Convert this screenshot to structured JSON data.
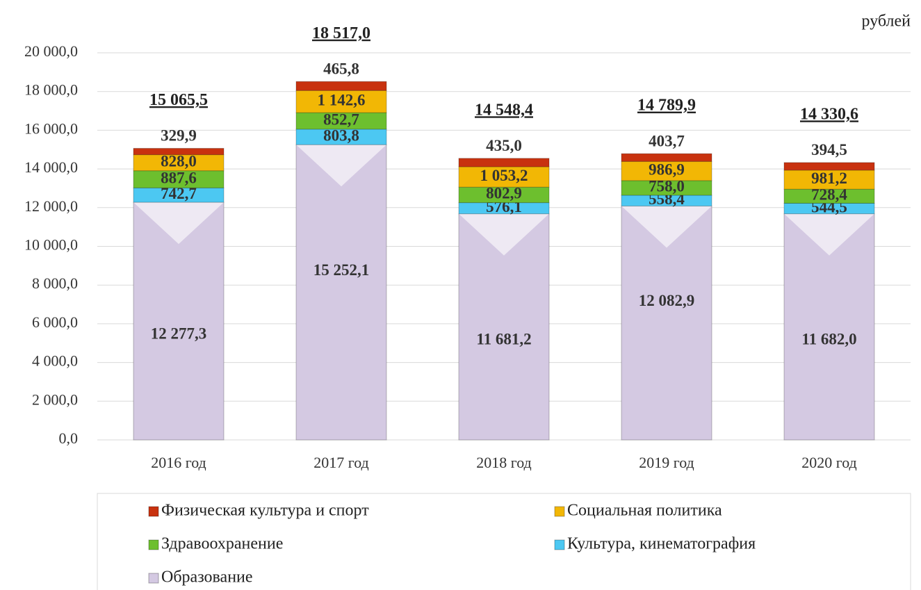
{
  "chart_data": {
    "type": "stacked_bar",
    "unit_label": "рублей",
    "categories": [
      "2016 год",
      "2017 год",
      "2018 год",
      "2019 год",
      "2020 год"
    ],
    "series": [
      {
        "name": "Образование",
        "color": "#d4c9e2",
        "values": [
          12277.3,
          15252.1,
          11681.2,
          12082.9,
          11682.0
        ],
        "value_labels": [
          "12 277,3",
          "15 252,1",
          "11 681,2",
          "12 082,9",
          "11 682,0"
        ]
      },
      {
        "name": "Культура, кинематография",
        "color": "#4cc8f2",
        "values": [
          742.7,
          803.8,
          576.1,
          558.4,
          544.5
        ],
        "value_labels": [
          "742,7",
          "803,8",
          "576,1",
          "558,4",
          "544,5"
        ]
      },
      {
        "name": "Здравоохранение",
        "color": "#6dbf2e",
        "values": [
          887.6,
          852.7,
          802.9,
          758.0,
          728.4
        ],
        "value_labels": [
          "887,6",
          "852,7",
          "802,9",
          "758,0",
          "728,4"
        ]
      },
      {
        "name": "Социальная политика",
        "color": "#f2b705",
        "values": [
          828.0,
          1142.6,
          1053.2,
          986.9,
          981.2
        ],
        "value_labels": [
          "828,0",
          "1 142,6",
          "1 053,2",
          "986,9",
          "981,2"
        ]
      },
      {
        "name": "Физическая культура и спорт",
        "color": "#c8320f",
        "values": [
          329.9,
          465.8,
          435.0,
          403.7,
          394.5
        ],
        "value_labels": [
          "329,9",
          "465,8",
          "435,0",
          "403,7",
          "394,5"
        ]
      }
    ],
    "totals": {
      "values": [
        15065.5,
        18517.0,
        14548.4,
        14789.9,
        14330.6
      ],
      "value_labels": [
        "15 065,5",
        "18 517,0",
        "14 548,4",
        "14 789,9",
        "14 330,6"
      ]
    },
    "ylim": [
      0,
      20000
    ],
    "yticks": [
      {
        "value": 0,
        "label": "0,0"
      },
      {
        "value": 2000,
        "label": "2 000,0"
      },
      {
        "value": 4000,
        "label": "4 000,0"
      },
      {
        "value": 6000,
        "label": "6 000,0"
      },
      {
        "value": 8000,
        "label": "8 000,0"
      },
      {
        "value": 10000,
        "label": "10 000,0"
      },
      {
        "value": 12000,
        "label": "12 000,0"
      },
      {
        "value": 14000,
        "label": "14 000,0"
      },
      {
        "value": 16000,
        "label": "16 000,0"
      },
      {
        "value": 18000,
        "label": "18 000,0"
      },
      {
        "value": 20000,
        "label": "20 000,0"
      }
    ],
    "grid": true,
    "legend": "bottom"
  }
}
